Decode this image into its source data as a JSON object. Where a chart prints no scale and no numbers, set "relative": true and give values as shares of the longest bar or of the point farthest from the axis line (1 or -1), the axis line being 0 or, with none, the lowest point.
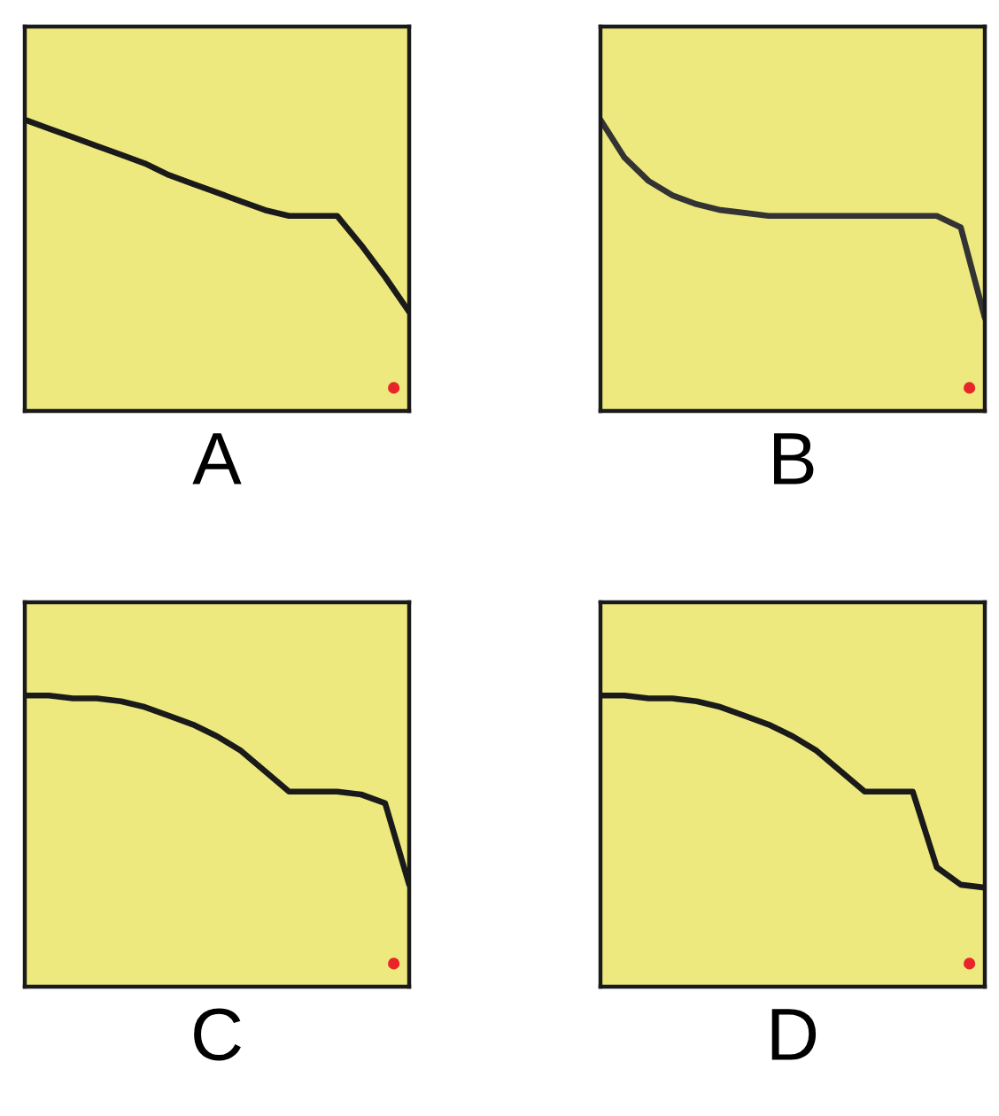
{
  "chart_data": [
    {
      "type": "line",
      "xlabel": "A",
      "relative": true,
      "tick_labels": false,
      "grid": false,
      "categories": [
        null,
        null,
        null,
        null,
        null,
        null,
        null,
        null,
        null,
        null,
        null,
        null,
        null,
        null,
        null,
        null,
        null
      ],
      "series": [
        {
          "color": "#1a1a1a",
          "values": [
            1,
            0.97,
            0.94,
            0.91,
            0.88,
            0.85,
            0.81,
            0.78,
            0.75,
            0.72,
            0.69,
            0.67,
            0.67,
            0.67,
            0.57,
            0.46,
            0.34
          ]
        }
      ]
    },
    {
      "type": "line",
      "xlabel": "B",
      "relative": true,
      "tick_labels": false,
      "grid": false,
      "categories": [
        null,
        null,
        null,
        null,
        null,
        null,
        null,
        null,
        null,
        null,
        null,
        null,
        null,
        null,
        null,
        null,
        null
      ],
      "series": [
        {
          "color": "#333333",
          "values": [
            1,
            0.87,
            0.79,
            0.74,
            0.71,
            0.69,
            0.68,
            0.67,
            0.67,
            0.67,
            0.67,
            0.67,
            0.67,
            0.67,
            0.67,
            0.63,
            0.32
          ]
        }
      ]
    },
    {
      "type": "line",
      "xlabel": "C",
      "relative": true,
      "tick_labels": false,
      "grid": false,
      "categories": [
        null,
        null,
        null,
        null,
        null,
        null,
        null,
        null,
        null,
        null,
        null,
        null,
        null,
        null,
        null,
        null,
        null
      ],
      "series": [
        {
          "color": "#1a1a1a",
          "values": [
            1,
            1,
            0.99,
            0.99,
            0.98,
            0.96,
            0.93,
            0.9,
            0.86,
            0.81,
            0.74,
            0.67,
            0.67,
            0.67,
            0.66,
            0.63,
            0.35
          ]
        }
      ]
    },
    {
      "type": "line",
      "xlabel": "D",
      "relative": true,
      "tick_labels": false,
      "grid": false,
      "categories": [
        null,
        null,
        null,
        null,
        null,
        null,
        null,
        null,
        null,
        null,
        null,
        null,
        null,
        null,
        null,
        null,
        null
      ],
      "series": [
        {
          "color": "#1a1a1a",
          "values": [
            1,
            1,
            0.99,
            0.99,
            0.98,
            0.96,
            0.93,
            0.9,
            0.86,
            0.81,
            0.74,
            0.67,
            0.67,
            0.67,
            0.41,
            0.35,
            0.34
          ]
        }
      ]
    }
  ]
}
